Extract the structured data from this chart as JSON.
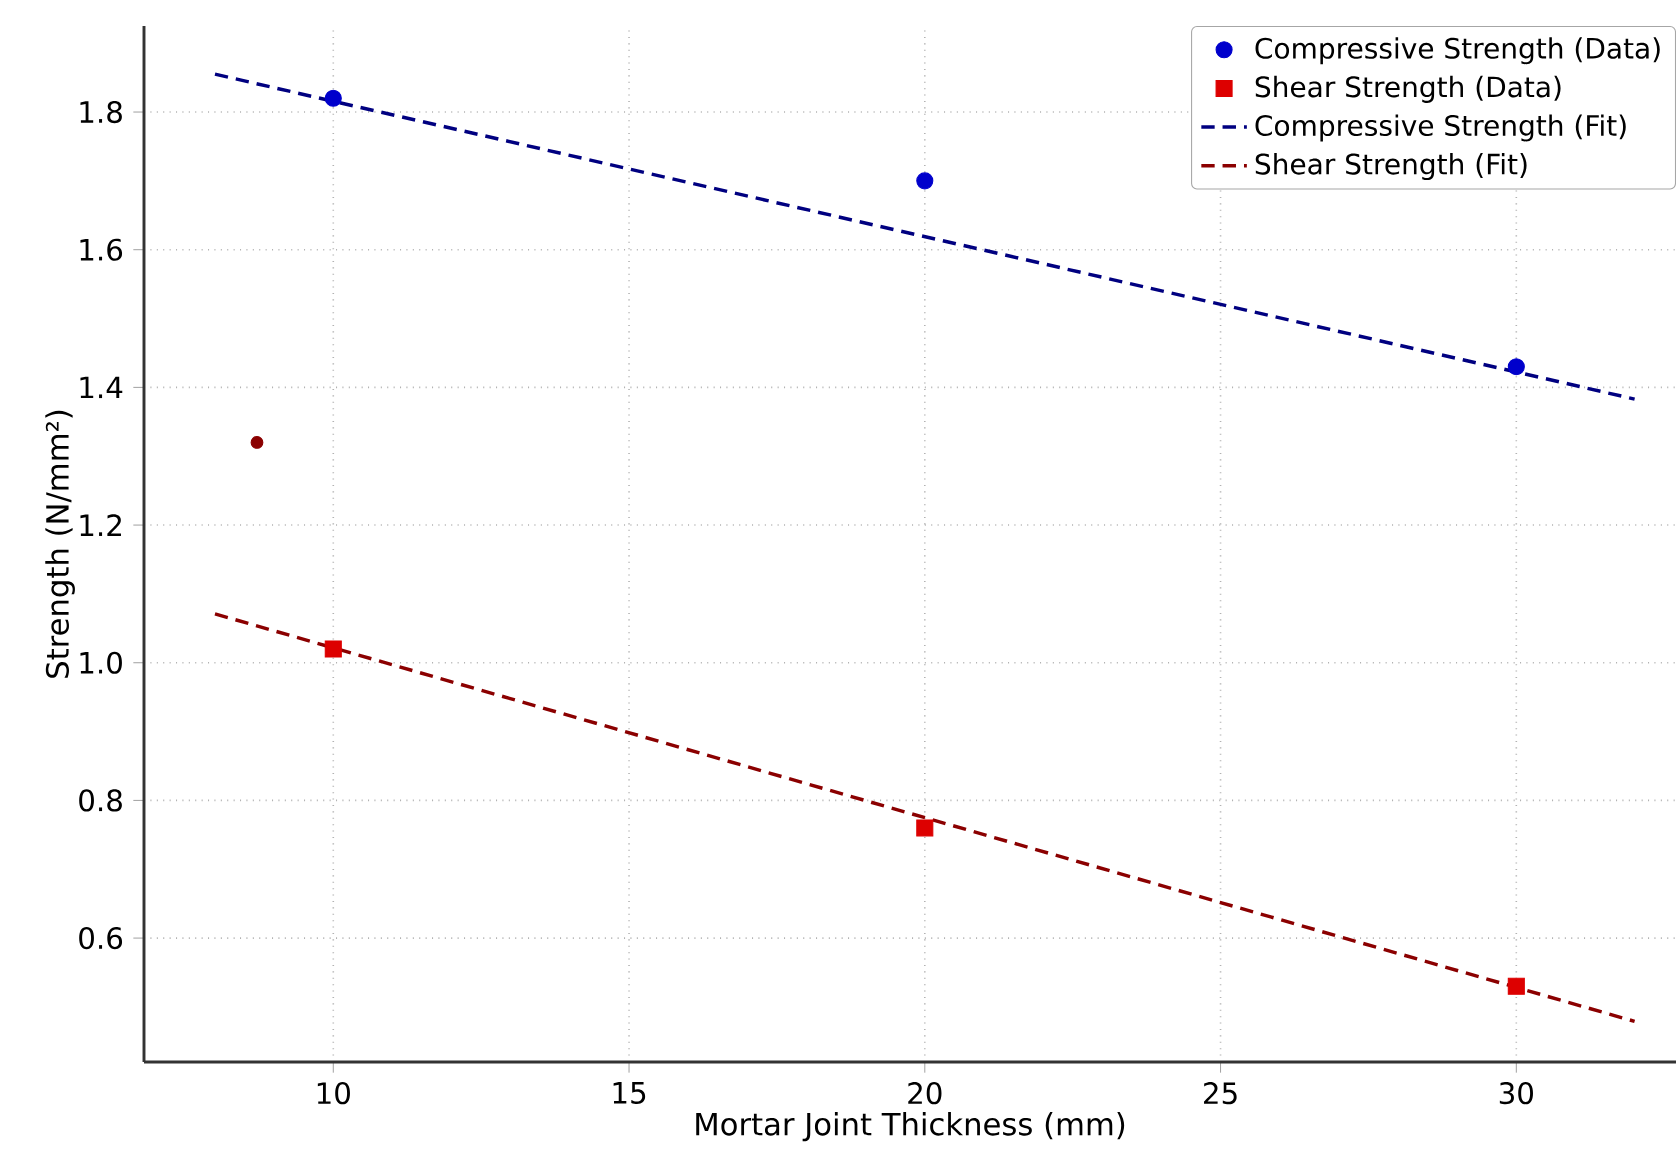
{
  "chart_data": {
    "type": "scatter",
    "xlabel": "Mortar Joint Thickness (mm)",
    "ylabel": "Strength (N/mm²)",
    "xlim": [
      6.8,
      32.7
    ],
    "ylim": [
      0.42,
      1.925
    ],
    "xticks": [
      10,
      15,
      20,
      25,
      30
    ],
    "yticks": [
      {
        "value": 0.6,
        "label": "0.6"
      },
      {
        "value": 0.8,
        "label": "0.8"
      },
      {
        "value": 1.0,
        "label": "1.0"
      },
      {
        "value": 1.2,
        "label": "1.2"
      },
      {
        "value": 1.4,
        "label": "1.4"
      },
      {
        "value": 1.6,
        "label": "1.6"
      },
      {
        "value": 1.8,
        "label": "1.8"
      }
    ],
    "grid": true,
    "legend": "top right",
    "series": [
      {
        "name": "Compressive Strength (Data)",
        "marker": "circle",
        "color": "#0000cc",
        "x": [
          10,
          20,
          30
        ],
        "values": [
          1.82,
          1.7,
          1.43
        ]
      },
      {
        "name": "Shear Strength (Data)",
        "marker": "square",
        "color": "#dd0000",
        "x": [
          10,
          20,
          30
        ],
        "values": [
          1.02,
          0.76,
          0.53
        ]
      },
      {
        "name": "Compressive Strength (Fit)",
        "type": "line",
        "line_style": "dashed",
        "color": "#000080",
        "x": [
          8,
          32
        ],
        "values": [
          1.855,
          1.383
        ]
      },
      {
        "name": "Shear Strength (Fit)",
        "type": "line",
        "line_style": "dashed",
        "color": "#8b0000",
        "x": [
          8,
          32
        ],
        "values": [
          1.071,
          0.479
        ]
      },
      {
        "marker": "circle",
        "color": "#8b0000",
        "x": [
          8.71
        ],
        "values": [
          1.32
        ]
      }
    ]
  }
}
